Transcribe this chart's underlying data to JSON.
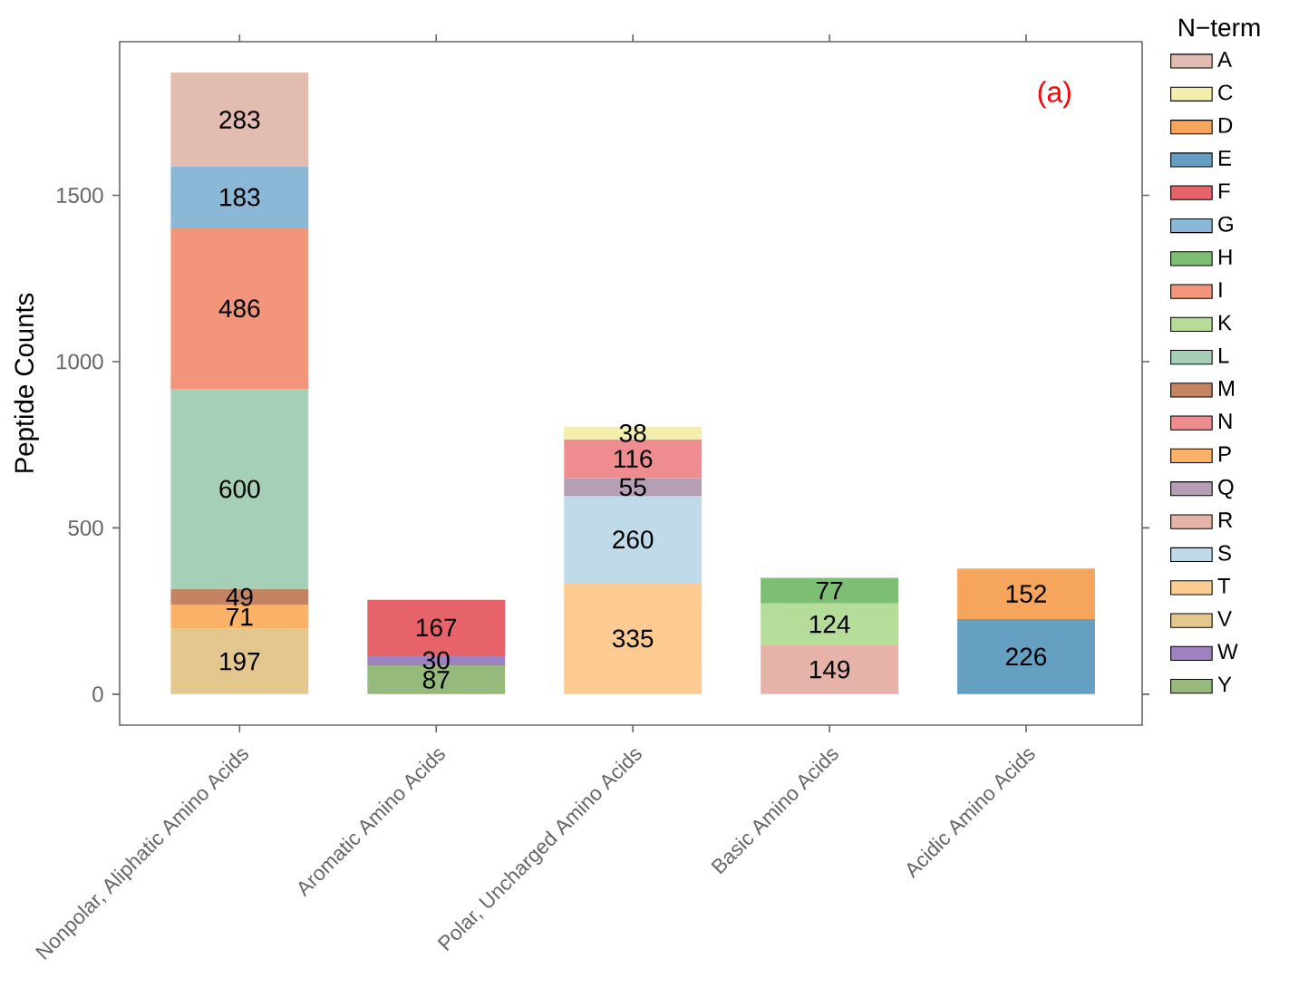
{
  "chart_data": {
    "type": "bar",
    "stacked": true,
    "data_labels": true,
    "legend": "right",
    "legend_title": "N−term",
    "ylabel": "Peptide Counts",
    "annotations": [
      "(a)"
    ],
    "ylim": [
      -93,
      1962
    ],
    "yticks": [
      0,
      500,
      1000,
      1500
    ],
    "categories": [
      "Nonpolar, Aliphatic Amino Acids",
      "Aromatic Amino Acids",
      "Polar, Uncharged Amino Acids",
      "Basic Amino Acids",
      "Acidic Amino Acids"
    ],
    "series": [
      {
        "name": "Y",
        "color": "#96b97c",
        "values": [
          null,
          87,
          null,
          null,
          null
        ]
      },
      {
        "name": "W",
        "color": "#9d82bf",
        "values": [
          null,
          30,
          null,
          null,
          null
        ]
      },
      {
        "name": "V",
        "color": "#e4c78f",
        "values": [
          197,
          null,
          null,
          null,
          null
        ]
      },
      {
        "name": "T",
        "color": "#fdcb92",
        "values": [
          null,
          null,
          335,
          null,
          null
        ]
      },
      {
        "name": "S",
        "color": "#bfdbea",
        "values": [
          null,
          null,
          260,
          null,
          null
        ]
      },
      {
        "name": "R",
        "color": "#e6b3a8",
        "values": [
          null,
          null,
          null,
          149,
          null
        ]
      },
      {
        "name": "Q",
        "color": "#b49fb5",
        "values": [
          null,
          null,
          55,
          null,
          null
        ]
      },
      {
        "name": "P",
        "color": "#fbb166",
        "values": [
          71,
          null,
          null,
          null,
          null
        ]
      },
      {
        "name": "N",
        "color": "#ef8c8f",
        "values": [
          null,
          null,
          116,
          null,
          null
        ]
      },
      {
        "name": "M",
        "color": "#c48463",
        "values": [
          49,
          null,
          null,
          null,
          null
        ]
      },
      {
        "name": "L",
        "color": "#a6cfb7",
        "values": [
          600,
          null,
          null,
          null,
          null
        ]
      },
      {
        "name": "K",
        "color": "#b5dc98",
        "values": [
          null,
          null,
          null,
          124,
          null
        ]
      },
      {
        "name": "I",
        "color": "#f2957b",
        "values": [
          486,
          null,
          null,
          null,
          null
        ]
      },
      {
        "name": "H",
        "color": "#7dbf72",
        "values": [
          null,
          null,
          null,
          77,
          null
        ]
      },
      {
        "name": "G",
        "color": "#8cb8d8",
        "values": [
          183,
          null,
          null,
          null,
          null
        ]
      },
      {
        "name": "F",
        "color": "#e7636a",
        "values": [
          null,
          167,
          null,
          null,
          null
        ]
      },
      {
        "name": "E",
        "color": "#659fc2",
        "values": [
          null,
          null,
          null,
          null,
          226
        ]
      },
      {
        "name": "D",
        "color": "#f6a65c",
        "values": [
          null,
          null,
          null,
          null,
          152
        ]
      },
      {
        "name": "C",
        "color": "#f3eeab",
        "values": [
          null,
          null,
          38,
          null,
          null
        ]
      },
      {
        "name": "A",
        "color": "#e3bcb1",
        "values": [
          283,
          null,
          null,
          null,
          null
        ]
      }
    ]
  }
}
